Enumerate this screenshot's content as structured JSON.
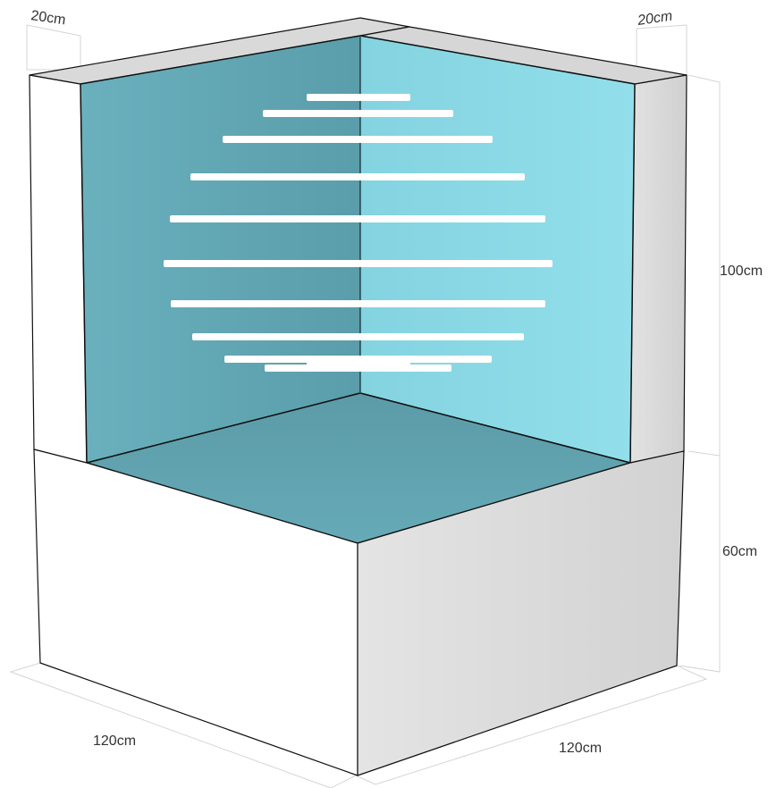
{
  "dimensions": {
    "top_left_depth": "20cm",
    "top_right_depth": "20cm",
    "upper_height": "100cm",
    "base_height": "60cm",
    "bottom_left_width": "120cm",
    "bottom_right_width": "120cm"
  },
  "colors": {
    "left_glass": "#62a6b5",
    "right_glass": "#8ddbe8",
    "floor": "#5e9eaa",
    "frame_top": "#d8d8d8",
    "frame_side": "#d6d6d6",
    "base_left": "#ffffff",
    "base_right": "#dcdcdc",
    "shelf": "#ffffff",
    "dimension_line": "#d4d4d4"
  },
  "shelf_count": 11
}
